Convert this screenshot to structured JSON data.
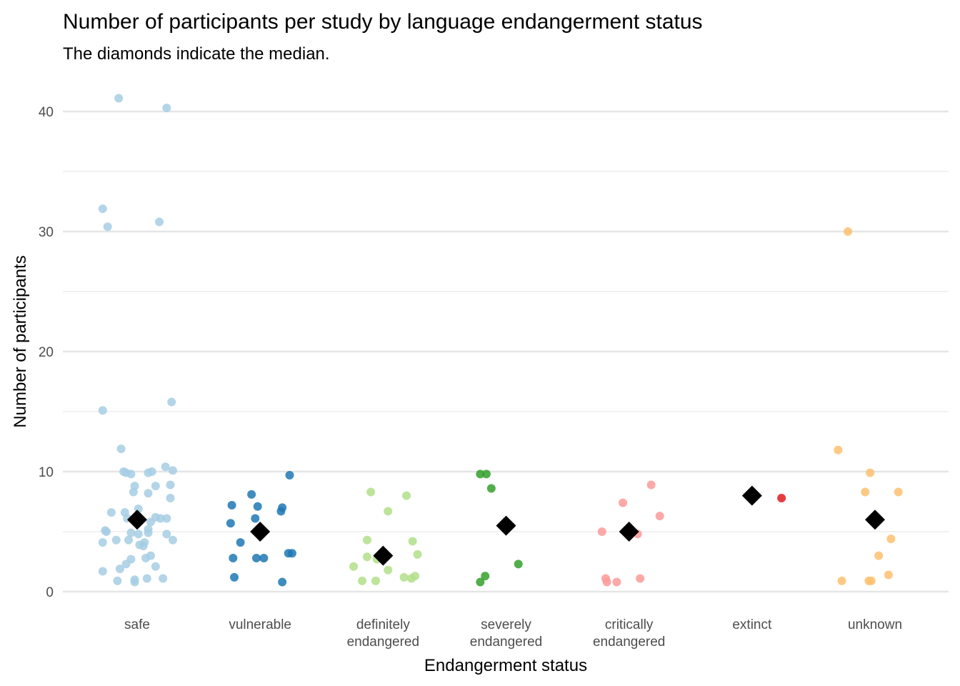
{
  "chart_data": {
    "type": "scatter",
    "title": "Number of participants per study by language endangerment status",
    "subtitle": "The diamonds indicate the median.",
    "xlabel": "Endangerment status",
    "ylabel": "Number of participants",
    "ylim": [
      0,
      40
    ],
    "yticks": [
      0,
      10,
      20,
      30,
      40
    ],
    "grid": true,
    "legend": "none",
    "categories": [
      {
        "label": [
          "safe"
        ],
        "color": "#a6cee3"
      },
      {
        "label": [
          "vulnerable"
        ],
        "color": "#1f78b4"
      },
      {
        "label": [
          "definitely",
          "endangered"
        ],
        "color": "#b2df8a"
      },
      {
        "label": [
          "severely",
          "endangered"
        ],
        "color": "#33a02c"
      },
      {
        "label": [
          "critically",
          "endangered"
        ],
        "color": "#fb9a99"
      },
      {
        "label": [
          "extinct"
        ],
        "color": "#e31a1c"
      },
      {
        "label": [
          "unknown"
        ],
        "color": "#fdbf6f"
      }
    ],
    "series": [
      {
        "name": "safe",
        "median": 6,
        "points": [
          [
            -0.15,
            41.1
          ],
          [
            0.24,
            40.3
          ],
          [
            -0.28,
            31.9
          ],
          [
            -0.24,
            30.4
          ],
          [
            0.18,
            30.8
          ],
          [
            -0.28,
            15.1
          ],
          [
            0.28,
            15.8
          ],
          [
            -0.13,
            11.9
          ],
          [
            -0.11,
            10.0
          ],
          [
            -0.09,
            9.9
          ],
          [
            -0.05,
            9.8
          ],
          [
            0.09,
            9.9
          ],
          [
            0.12,
            10.0
          ],
          [
            0.23,
            10.4
          ],
          [
            0.29,
            10.1
          ],
          [
            -0.02,
            8.8
          ],
          [
            0.15,
            8.8
          ],
          [
            0.27,
            8.9
          ],
          [
            -0.03,
            8.3
          ],
          [
            0.09,
            8.2
          ],
          [
            0.27,
            7.8
          ],
          [
            0.01,
            6.9
          ],
          [
            -0.21,
            6.6
          ],
          [
            -0.1,
            6.6
          ],
          [
            -0.08,
            6.1
          ],
          [
            0.15,
            6.2
          ],
          [
            0.19,
            6.1
          ],
          [
            0.24,
            6.1
          ],
          [
            0.11,
            5.8
          ],
          [
            -0.26,
            5.1
          ],
          [
            -0.25,
            5.0
          ],
          [
            -0.05,
            4.9
          ],
          [
            0.01,
            4.8
          ],
          [
            0.09,
            5.2
          ],
          [
            0.09,
            4.9
          ],
          [
            0.24,
            4.8
          ],
          [
            -0.17,
            4.3
          ],
          [
            -0.07,
            4.3
          ],
          [
            0.29,
            4.3
          ],
          [
            -0.28,
            4.1
          ],
          [
            0.02,
            3.9
          ],
          [
            0.06,
            4.1
          ],
          [
            0.05,
            3.8
          ],
          [
            0.11,
            3.0
          ],
          [
            -0.05,
            2.7
          ],
          [
            0.07,
            2.8
          ],
          [
            -0.09,
            2.3
          ],
          [
            0.15,
            2.1
          ],
          [
            -0.14,
            1.9
          ],
          [
            -0.28,
            1.7
          ],
          [
            -0.16,
            0.9
          ],
          [
            -0.02,
            1.0
          ],
          [
            -0.02,
            0.8
          ],
          [
            0.08,
            1.1
          ],
          [
            0.21,
            1.1
          ]
        ]
      },
      {
        "name": "vulnerable",
        "median": 5,
        "points": [
          [
            0.24,
            9.7
          ],
          [
            -0.07,
            8.1
          ],
          [
            -0.23,
            7.2
          ],
          [
            -0.02,
            7.1
          ],
          [
            0.18,
            7.0
          ],
          [
            0.17,
            6.7
          ],
          [
            -0.04,
            6.1
          ],
          [
            -0.24,
            5.7
          ],
          [
            -0.16,
            4.1
          ],
          [
            -0.22,
            2.8
          ],
          [
            -0.03,
            2.8
          ],
          [
            0.03,
            2.8
          ],
          [
            0.23,
            3.2
          ],
          [
            0.26,
            3.2
          ],
          [
            -0.21,
            1.2
          ],
          [
            0.18,
            0.8
          ]
        ]
      },
      {
        "name": "definitely endangered",
        "median": 3,
        "points": [
          [
            -0.1,
            8.3
          ],
          [
            0.19,
            8.0
          ],
          [
            0.04,
            6.7
          ],
          [
            -0.13,
            4.3
          ],
          [
            0.24,
            4.2
          ],
          [
            0.28,
            3.1
          ],
          [
            -0.13,
            2.9
          ],
          [
            -0.05,
            2.7
          ],
          [
            -0.24,
            2.1
          ],
          [
            0.04,
            1.8
          ],
          [
            0.17,
            1.2
          ],
          [
            0.23,
            1.1
          ],
          [
            0.26,
            1.3
          ],
          [
            -0.17,
            0.9
          ],
          [
            -0.06,
            0.9
          ]
        ]
      },
      {
        "name": "severely endangered",
        "median": 5.5,
        "points": [
          [
            -0.21,
            9.8
          ],
          [
            -0.16,
            9.8
          ],
          [
            -0.12,
            8.6
          ],
          [
            0.1,
            2.3
          ],
          [
            -0.17,
            1.3
          ],
          [
            -0.21,
            0.8
          ]
        ]
      },
      {
        "name": "critically endangered",
        "median": 5,
        "points": [
          [
            0.18,
            8.9
          ],
          [
            -0.05,
            7.4
          ],
          [
            0.25,
            6.3
          ],
          [
            -0.22,
            5.0
          ],
          [
            0.07,
            4.8
          ],
          [
            -0.19,
            1.1
          ],
          [
            -0.18,
            0.8
          ],
          [
            -0.1,
            0.8
          ],
          [
            0.09,
            1.1
          ]
        ]
      },
      {
        "name": "extinct",
        "median": 8,
        "points": [
          [
            0.24,
            7.8
          ]
        ]
      },
      {
        "name": "unknown",
        "median": 6,
        "points": [
          [
            -0.3,
            11.8
          ],
          [
            -0.04,
            9.9
          ],
          [
            -0.08,
            8.3
          ],
          [
            0.19,
            8.3
          ],
          [
            0.13,
            4.4
          ],
          [
            0.03,
            3.0
          ],
          [
            0.11,
            1.4
          ],
          [
            -0.27,
            0.9
          ],
          [
            -0.03,
            0.9
          ],
          [
            -0.05,
            0.9
          ],
          [
            -0.22,
            30.0
          ]
        ]
      }
    ]
  }
}
